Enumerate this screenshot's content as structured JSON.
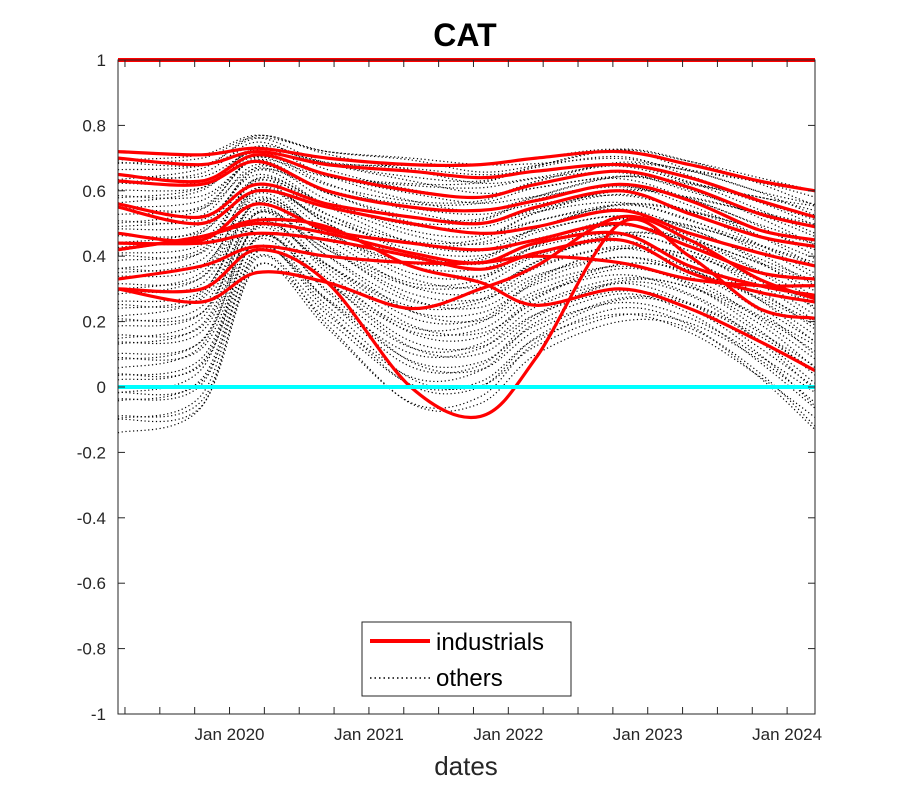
{
  "chart_data": {
    "type": "line",
    "title": "CAT",
    "xlabel": "dates",
    "ylabel": "",
    "ylim": [
      -1,
      1
    ],
    "xlim": [
      2019.2,
      2024.2
    ],
    "grid": false,
    "legend_position": "bottom-center",
    "y_ticks": [
      -1,
      -0.8,
      -0.6,
      -0.4,
      -0.2,
      0,
      0.2,
      0.4,
      0.6,
      0.8,
      1
    ],
    "y_tick_labels": [
      "-1",
      "-0.8",
      "-0.6",
      "-0.4",
      "-0.2",
      "0",
      "0.2",
      "0.4",
      "0.6",
      "0.8",
      "1"
    ],
    "x_ticks": [
      2020.0,
      2021.0,
      2022.0,
      2023.0,
      2024.0
    ],
    "x_tick_labels": [
      "Jan 2020",
      "Jan 2021",
      "Jan 2022",
      "Jan 2023",
      "Jan 2024"
    ],
    "x_minor_ticks": [
      2019.25,
      2019.5,
      2019.75,
      2020.25,
      2020.5,
      2020.75,
      2021.25,
      2021.5,
      2021.75,
      2022.25,
      2022.5,
      2022.75,
      2023.25,
      2023.5,
      2023.75
    ],
    "legend": [
      {
        "label": "industrials",
        "color": "#ff0000",
        "style": "solid"
      },
      {
        "label": "others",
        "color": "#000000",
        "style": "dotted"
      }
    ],
    "sample_dates": [
      2019.2,
      2019.8,
      2020.2,
      2020.7,
      2021.3,
      2021.8,
      2022.2,
      2022.8,
      2023.3,
      2023.8,
      2024.2
    ],
    "reference_lines": [
      {
        "name": "self-correlation",
        "y": 1,
        "color": "#ff0000"
      },
      {
        "name": "zero-line",
        "y": 0,
        "color": "#00ffff"
      }
    ],
    "series_industrials": [
      [
        0.72,
        0.71,
        0.73,
        0.7,
        0.68,
        0.68,
        0.7,
        0.72,
        0.68,
        0.63,
        0.6
      ],
      [
        0.7,
        0.68,
        0.72,
        0.68,
        0.66,
        0.64,
        0.66,
        0.68,
        0.64,
        0.57,
        0.52
      ],
      [
        0.65,
        0.63,
        0.71,
        0.65,
        0.6,
        0.58,
        0.62,
        0.66,
        0.61,
        0.53,
        0.49
      ],
      [
        0.63,
        0.62,
        0.69,
        0.6,
        0.55,
        0.54,
        0.57,
        0.62,
        0.57,
        0.48,
        0.45
      ],
      [
        0.56,
        0.52,
        0.62,
        0.56,
        0.52,
        0.5,
        0.55,
        0.6,
        0.53,
        0.46,
        0.43
      ],
      [
        0.55,
        0.5,
        0.6,
        0.55,
        0.5,
        0.47,
        0.49,
        0.54,
        0.47,
        0.41,
        0.37
      ],
      [
        0.47,
        0.45,
        0.56,
        0.48,
        0.44,
        0.42,
        0.45,
        0.5,
        0.43,
        0.35,
        0.33
      ],
      [
        0.42,
        0.46,
        0.5,
        0.47,
        0.41,
        0.38,
        0.44,
        0.47,
        0.37,
        0.31,
        0.28
      ],
      [
        0.44,
        0.44,
        0.47,
        0.45,
        0.4,
        0.36,
        0.41,
        0.45,
        0.35,
        0.29,
        0.26
      ],
      [
        0.33,
        0.37,
        0.43,
        0.4,
        0.38,
        0.38,
        0.4,
        0.38,
        0.33,
        0.31,
        0.31
      ],
      [
        0.3,
        0.26,
        0.35,
        0.32,
        0.24,
        0.3,
        0.37,
        0.52,
        0.45,
        0.33,
        0.27
      ],
      [
        0.42,
        0.46,
        0.51,
        0.49,
        0.37,
        0.32,
        0.25,
        0.3,
        0.24,
        0.14,
        0.05
      ],
      [
        0.3,
        0.3,
        0.42,
        0.32,
        0.0,
        -0.09,
        0.09,
        0.5,
        0.4,
        0.24,
        0.21
      ]
    ],
    "series_others_envelope": {
      "upper": [
        0.7,
        0.71,
        0.77,
        0.72,
        0.7,
        0.68,
        0.7,
        0.73,
        0.69,
        0.64,
        0.6
      ],
      "lower": [
        -0.14,
        -0.08,
        0.37,
        0.18,
        -0.05,
        -0.05,
        0.1,
        0.2,
        0.16,
        0.02,
        -0.13
      ],
      "count": 60
    }
  }
}
